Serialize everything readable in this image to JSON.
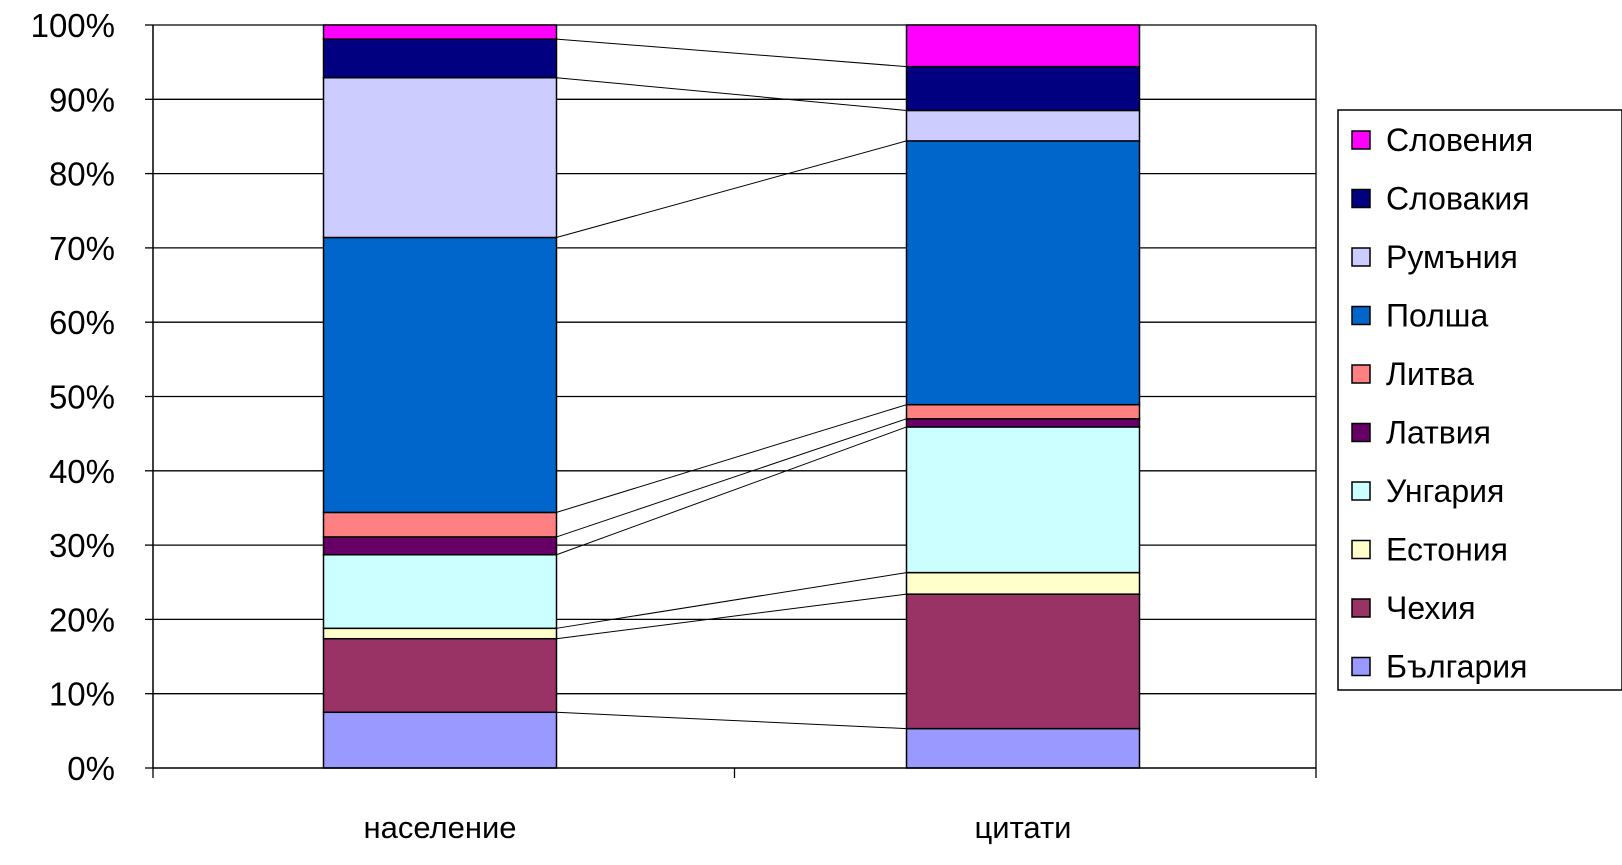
{
  "chart_data": {
    "type": "bar",
    "stacked": "percent",
    "categories": [
      "население",
      "цитати"
    ],
    "series": [
      {
        "name": "България",
        "color": "#9999FF",
        "values": [
          7.5,
          5.3
        ]
      },
      {
        "name": "Чехия",
        "color": "#993366",
        "values": [
          9.9,
          18.1
        ]
      },
      {
        "name": "Естония",
        "color": "#FFFFCC",
        "values": [
          1.4,
          2.9
        ]
      },
      {
        "name": "Унгария",
        "color": "#CCFFFF",
        "values": [
          9.9,
          19.6
        ]
      },
      {
        "name": "Латвия",
        "color": "#660066",
        "values": [
          2.4,
          1.1
        ]
      },
      {
        "name": "Литва",
        "color": "#FF8080",
        "values": [
          3.3,
          1.9
        ]
      },
      {
        "name": "Полша",
        "color": "#0066CC",
        "values": [
          37.0,
          35.5
        ]
      },
      {
        "name": "Румъния",
        "color": "#CCCCFF",
        "values": [
          21.5,
          4.1
        ]
      },
      {
        "name": "Словакия",
        "color": "#000080",
        "values": [
          5.2,
          5.9
        ]
      },
      {
        "name": "Словения",
        "color": "#FF00FF",
        "values": [
          1.9,
          5.6
        ]
      }
    ],
    "yticks": [
      "0%",
      "10%",
      "20%",
      "30%",
      "40%",
      "50%",
      "60%",
      "70%",
      "80%",
      "90%",
      "100%"
    ],
    "ylim": [
      0,
      100
    ],
    "grid": true,
    "legend": "right",
    "series_lines": true,
    "title": "",
    "xlabel": "",
    "ylabel": ""
  }
}
